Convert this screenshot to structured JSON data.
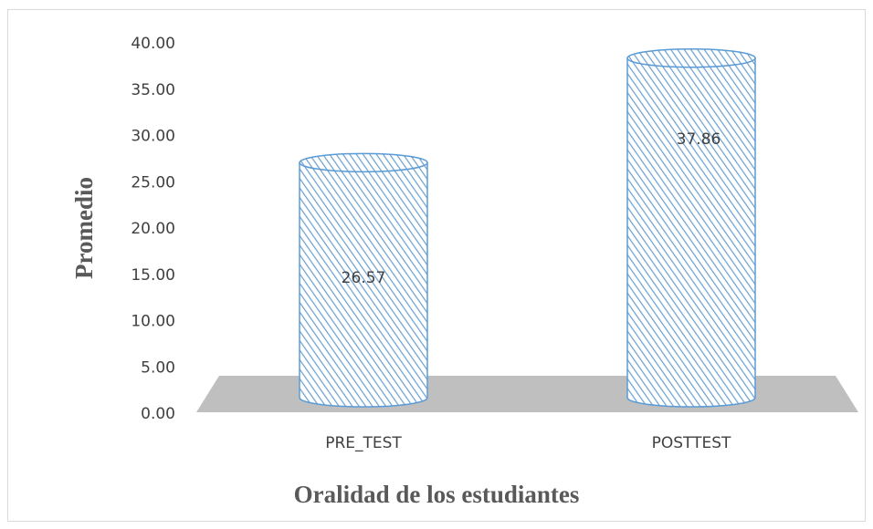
{
  "chart_data": {
    "type": "cylinder",
    "categories": [
      "PRE_TEST",
      "POSTTEST"
    ],
    "values": [
      26.57,
      37.86
    ],
    "color": "#5b9bd5",
    "xlabel": "Oralidad de los estudiantes",
    "ylabel": "Promedio",
    "ylim": [
      0,
      40
    ],
    "yticks": [
      {
        "value": 0,
        "label": "0.00"
      },
      {
        "value": 5,
        "label": "5.00"
      },
      {
        "value": 10,
        "label": "10.00"
      },
      {
        "value": 15,
        "label": "15.00"
      },
      {
        "value": 20,
        "label": "20.00"
      },
      {
        "value": 25,
        "label": "25.00"
      },
      {
        "value": 30,
        "label": "30.00"
      },
      {
        "value": 35,
        "label": "35.00"
      },
      {
        "value": 40,
        "label": "40.00"
      }
    ],
    "grid": false
  }
}
